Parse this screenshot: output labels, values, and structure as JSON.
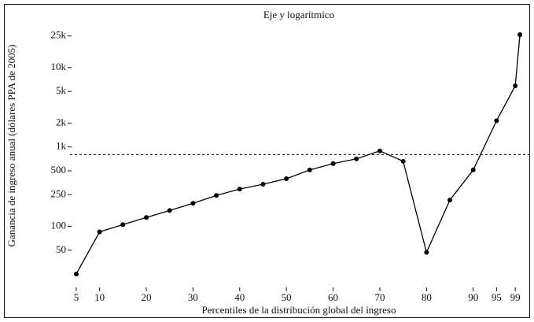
{
  "chart_data": {
    "type": "line",
    "title": "Eje y logarítmico",
    "x_label": "Percentiles de la distribución global del ingreso",
    "y_label": "Ganancia de ingreso anual (dólares PPA de 2005)",
    "x": [
      5,
      10,
      15,
      20,
      25,
      30,
      35,
      40,
      45,
      50,
      55,
      60,
      65,
      70,
      75,
      80,
      85,
      90,
      95,
      99,
      100
    ],
    "series": [
      {
        "color": "#000000",
        "values": [
          25,
          85,
          105,
          129,
          158,
          195,
          245,
          295,
          339,
          398,
          513,
          617,
          708,
          891,
          660,
          47,
          214,
          513,
          2138,
          5890,
          26000
        ]
      }
    ],
    "xlim": [
      4,
      101.5
    ],
    "xticks": [
      5,
      10,
      20,
      30,
      40,
      50,
      60,
      70,
      80,
      90,
      95,
      99
    ],
    "ylim": [
      17,
      45000
    ],
    "y_log": true,
    "yticks": [
      50,
      100,
      250,
      500,
      {
        "value": 1000,
        "label": "1k"
      },
      {
        "value": 2000,
        "label": "2k"
      },
      {
        "value": 5000,
        "label": "5k"
      },
      {
        "value": 10000,
        "label": "10k"
      },
      {
        "value": 25000,
        "label": "25k"
      }
    ],
    "reference_line": {
      "y": 800,
      "style": "dashed",
      "color": "#000000"
    }
  }
}
